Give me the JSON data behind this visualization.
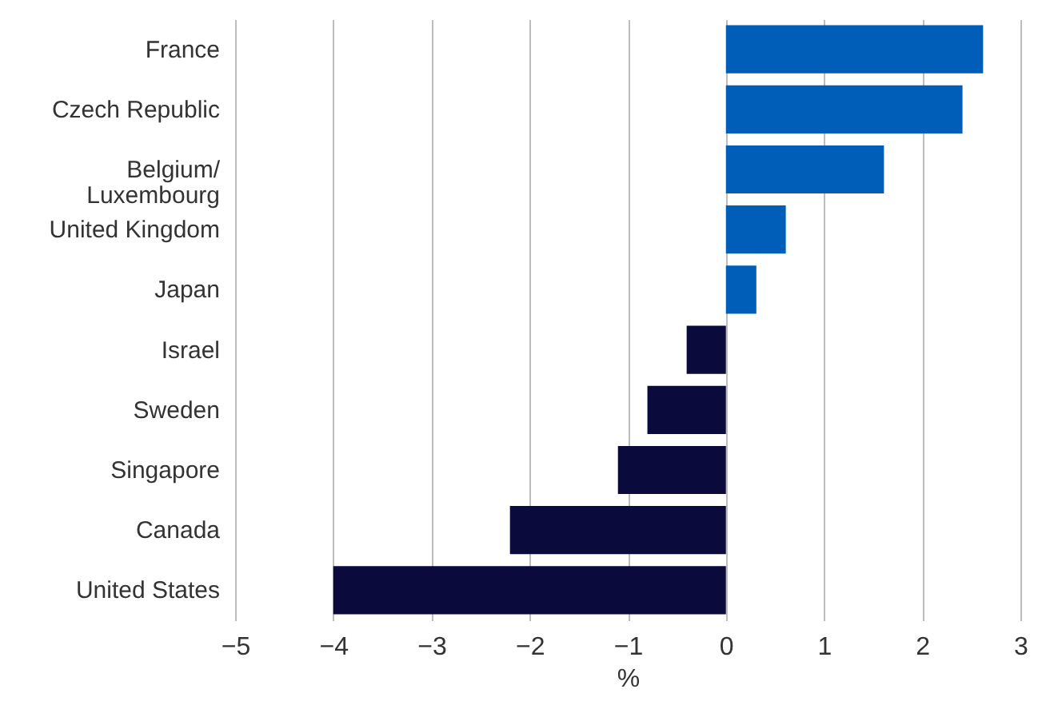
{
  "chart_data": {
    "type": "bar",
    "orientation": "horizontal",
    "xlabel": "%",
    "categories": [
      "France",
      "Czech Republic",
      "Belgium/ Luxembourg",
      "United Kingdom",
      "Japan",
      "Israel",
      "Sweden",
      "Singapore",
      "Canada",
      "United States"
    ],
    "values": [
      2.62,
      2.41,
      1.61,
      0.61,
      0.31,
      -0.4,
      -0.8,
      -1.1,
      -2.2,
      -4.0
    ],
    "colors": [
      "#005eb8",
      "#005eb8",
      "#005eb8",
      "#005eb8",
      "#005eb8",
      "#0a0a3c",
      "#0a0a3c",
      "#0a0a3c",
      "#0a0a3c",
      "#0a0a3c"
    ],
    "xlim": [
      -5,
      3
    ],
    "xticks": [
      -5,
      -4,
      -3,
      -2,
      -1,
      0,
      1,
      2,
      3
    ],
    "grid": "x"
  }
}
